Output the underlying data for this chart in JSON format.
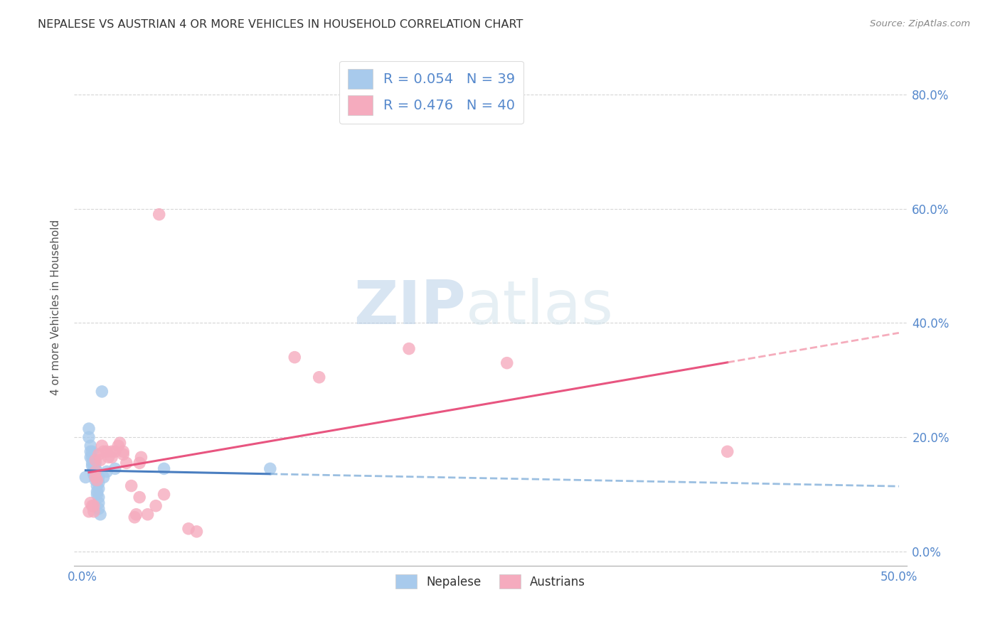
{
  "title": "NEPALESE VS AUSTRIAN 4 OR MORE VEHICLES IN HOUSEHOLD CORRELATION CHART",
  "source": "Source: ZipAtlas.com",
  "ylabel_label": "4 or more Vehicles in Household",
  "xlim": [
    -0.005,
    0.505
  ],
  "ylim": [
    -0.025,
    0.88
  ],
  "xticks": [
    0.0,
    0.5
  ],
  "xticklabels": [
    "0.0%",
    "50.0%"
  ],
  "yticks": [
    0.0,
    0.2,
    0.4,
    0.6,
    0.8
  ],
  "yticklabels": [
    "0.0%",
    "20.0%",
    "40.0%",
    "60.0%",
    "80.0%"
  ],
  "legend_R_blue": "R = 0.054",
  "legend_N_blue": "N = 39",
  "legend_R_pink": "R = 0.476",
  "legend_N_pink": "N = 40",
  "blue_color": "#A8CAEC",
  "pink_color": "#F5ABBE",
  "blue_line_solid_color": "#4A7EC0",
  "pink_line_solid_color": "#E85580",
  "blue_line_dash_color": "#7AAAD8",
  "pink_line_dash_color": "#F08098",
  "blue_scatter": [
    [
      0.002,
      0.13
    ],
    [
      0.004,
      0.215
    ],
    [
      0.004,
      0.2
    ],
    [
      0.005,
      0.185
    ],
    [
      0.005,
      0.175
    ],
    [
      0.005,
      0.165
    ],
    [
      0.006,
      0.175
    ],
    [
      0.006,
      0.165
    ],
    [
      0.006,
      0.155
    ],
    [
      0.006,
      0.15
    ],
    [
      0.007,
      0.16
    ],
    [
      0.007,
      0.15
    ],
    [
      0.007,
      0.145
    ],
    [
      0.007,
      0.14
    ],
    [
      0.007,
      0.135
    ],
    [
      0.008,
      0.155
    ],
    [
      0.008,
      0.145
    ],
    [
      0.008,
      0.135
    ],
    [
      0.008,
      0.13
    ],
    [
      0.008,
      0.125
    ],
    [
      0.009,
      0.14
    ],
    [
      0.009,
      0.135
    ],
    [
      0.009,
      0.125
    ],
    [
      0.009,
      0.115
    ],
    [
      0.009,
      0.105
    ],
    [
      0.009,
      0.1
    ],
    [
      0.01,
      0.13
    ],
    [
      0.01,
      0.12
    ],
    [
      0.01,
      0.11
    ],
    [
      0.01,
      0.095
    ],
    [
      0.01,
      0.085
    ],
    [
      0.01,
      0.075
    ],
    [
      0.011,
      0.065
    ],
    [
      0.012,
      0.28
    ],
    [
      0.013,
      0.13
    ],
    [
      0.015,
      0.14
    ],
    [
      0.02,
      0.145
    ],
    [
      0.05,
      0.145
    ],
    [
      0.115,
      0.145
    ]
  ],
  "pink_scatter": [
    [
      0.004,
      0.07
    ],
    [
      0.005,
      0.085
    ],
    [
      0.006,
      0.08
    ],
    [
      0.007,
      0.07
    ],
    [
      0.007,
      0.08
    ],
    [
      0.008,
      0.14
    ],
    [
      0.008,
      0.13
    ],
    [
      0.008,
      0.16
    ],
    [
      0.009,
      0.125
    ],
    [
      0.01,
      0.17
    ],
    [
      0.011,
      0.16
    ],
    [
      0.012,
      0.185
    ],
    [
      0.013,
      0.175
    ],
    [
      0.015,
      0.175
    ],
    [
      0.016,
      0.165
    ],
    [
      0.018,
      0.175
    ],
    [
      0.018,
      0.165
    ],
    [
      0.02,
      0.175
    ],
    [
      0.022,
      0.185
    ],
    [
      0.023,
      0.19
    ],
    [
      0.025,
      0.175
    ],
    [
      0.025,
      0.17
    ],
    [
      0.027,
      0.155
    ],
    [
      0.03,
      0.115
    ],
    [
      0.032,
      0.06
    ],
    [
      0.033,
      0.065
    ],
    [
      0.035,
      0.155
    ],
    [
      0.035,
      0.095
    ],
    [
      0.036,
      0.165
    ],
    [
      0.04,
      0.065
    ],
    [
      0.045,
      0.08
    ],
    [
      0.047,
      0.59
    ],
    [
      0.05,
      0.1
    ],
    [
      0.065,
      0.04
    ],
    [
      0.07,
      0.035
    ],
    [
      0.13,
      0.34
    ],
    [
      0.145,
      0.305
    ],
    [
      0.2,
      0.355
    ],
    [
      0.26,
      0.33
    ],
    [
      0.395,
      0.175
    ]
  ],
  "watermark_zip": "ZIP",
  "watermark_atlas": "atlas",
  "background_color": "#ffffff",
  "grid_color": "#cccccc",
  "tick_color": "#5588CC",
  "title_color": "#333333",
  "source_color": "#888888",
  "ylabel_color": "#555555"
}
